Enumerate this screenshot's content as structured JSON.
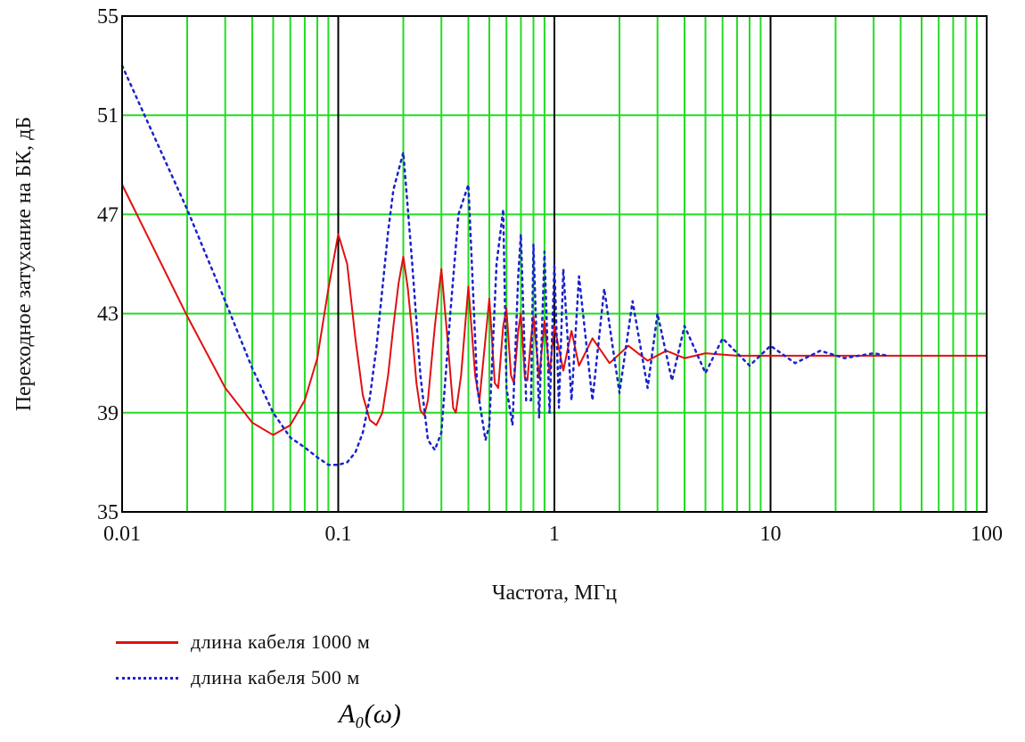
{
  "chart_data": {
    "type": "line",
    "xlabel": "Частота, МГц",
    "ylabel": "Переходное затухание на БК, дБ",
    "xscale": "log",
    "xlim": [
      0.01,
      100
    ],
    "ylim": [
      35,
      55
    ],
    "xticks": [
      {
        "value": 0.01,
        "label": "0.01"
      },
      {
        "value": 0.1,
        "label": "0.1"
      },
      {
        "value": 1,
        "label": "1"
      },
      {
        "value": 10,
        "label": "10"
      },
      {
        "value": 100,
        "label": "100"
      }
    ],
    "yticks": [
      {
        "value": 35,
        "label": "35"
      },
      {
        "value": 39,
        "label": "39"
      },
      {
        "value": 43,
        "label": "43"
      },
      {
        "value": 47,
        "label": "47"
      },
      {
        "value": 51,
        "label": "51"
      },
      {
        "value": 55,
        "label": "55"
      }
    ],
    "grid": true,
    "grid_color": "#22dd22",
    "decade_line_color": "#000000",
    "legend_position": "bottom-left",
    "caption": "A₀(ω)",
    "series": [
      {
        "name": "длина кабеля 1000 м",
        "color": "#e01010",
        "style": "solid",
        "x": [
          0.01,
          0.02,
          0.03,
          0.04,
          0.05,
          0.06,
          0.07,
          0.08,
          0.09,
          0.1,
          0.11,
          0.12,
          0.13,
          0.14,
          0.15,
          0.16,
          0.17,
          0.18,
          0.19,
          0.2,
          0.21,
          0.22,
          0.23,
          0.24,
          0.25,
          0.26,
          0.28,
          0.3,
          0.32,
          0.34,
          0.35,
          0.37,
          0.4,
          0.43,
          0.45,
          0.48,
          0.5,
          0.53,
          0.55,
          0.58,
          0.6,
          0.63,
          0.65,
          0.68,
          0.7,
          0.73,
          0.75,
          0.78,
          0.8,
          0.85,
          0.9,
          0.95,
          1.0,
          1.1,
          1.2,
          1.3,
          1.5,
          1.8,
          2.2,
          2.7,
          3.3,
          4.0,
          5.0,
          7.0,
          10,
          20,
          50,
          100
        ],
        "y": [
          48.2,
          42.9,
          40.0,
          38.6,
          38.1,
          38.5,
          39.5,
          41.2,
          44.0,
          46.2,
          45.0,
          42.0,
          39.7,
          38.7,
          38.5,
          39.0,
          40.5,
          42.5,
          44.2,
          45.3,
          44.0,
          42.2,
          40.2,
          39.1,
          38.9,
          39.5,
          42.5,
          44.8,
          42.0,
          39.2,
          39.0,
          40.5,
          44.1,
          40.5,
          39.5,
          42.0,
          43.6,
          40.2,
          40.0,
          42.5,
          43.2,
          40.5,
          40.2,
          42.3,
          43.0,
          40.4,
          40.3,
          42.0,
          42.9,
          40.4,
          42.7,
          40.6,
          42.5,
          40.7,
          42.3,
          40.9,
          42.0,
          41.0,
          41.7,
          41.1,
          41.5,
          41.2,
          41.4,
          41.3,
          41.3,
          41.3,
          41.3,
          41.3
        ]
      },
      {
        "name": "длина кабеля 500 м",
        "color": "#1a22cc",
        "style": "dotted",
        "x": [
          0.01,
          0.02,
          0.03,
          0.04,
          0.05,
          0.06,
          0.07,
          0.08,
          0.09,
          0.1,
          0.11,
          0.12,
          0.13,
          0.14,
          0.15,
          0.16,
          0.17,
          0.18,
          0.2,
          0.22,
          0.24,
          0.26,
          0.28,
          0.3,
          0.33,
          0.36,
          0.4,
          0.44,
          0.48,
          0.5,
          0.54,
          0.58,
          0.6,
          0.64,
          0.68,
          0.7,
          0.74,
          0.78,
          0.8,
          0.85,
          0.9,
          0.95,
          1.0,
          1.05,
          1.1,
          1.2,
          1.3,
          1.5,
          1.7,
          2.0,
          2.3,
          2.7,
          3.0,
          3.5,
          4.0,
          5.0,
          6.0,
          8.0,
          10,
          13,
          17,
          22,
          30,
          35
        ],
        "y": [
          53.0,
          47.2,
          43.5,
          40.8,
          39.0,
          38.0,
          37.6,
          37.2,
          36.9,
          36.9,
          37.0,
          37.4,
          38.2,
          39.6,
          41.6,
          44.0,
          46.3,
          48.0,
          49.5,
          45.0,
          40.5,
          37.9,
          37.5,
          38.2,
          43.0,
          47.0,
          48.2,
          40.0,
          37.9,
          38.5,
          45.0,
          47.2,
          40.0,
          38.5,
          44.5,
          46.2,
          39.5,
          39.5,
          45.8,
          38.8,
          45.5,
          39.0,
          45.0,
          39.2,
          44.8,
          39.5,
          44.5,
          39.5,
          44.0,
          39.8,
          43.5,
          40.0,
          43.0,
          40.3,
          42.5,
          40.6,
          42.0,
          40.9,
          41.7,
          41.0,
          41.5,
          41.2,
          41.4,
          41.3
        ]
      }
    ]
  }
}
